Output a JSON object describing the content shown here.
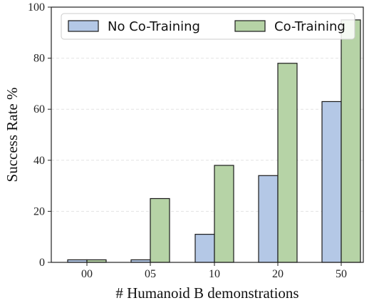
{
  "chart_data": {
    "type": "bar",
    "title": "",
    "xlabel": "# Humanoid B demonstrations",
    "ylabel": "Success Rate %",
    "categories": [
      "00",
      "05",
      "10",
      "20",
      "50"
    ],
    "series": [
      {
        "name": "No Co-Training",
        "values": [
          1,
          1,
          11,
          34,
          63
        ],
        "color": "#b4c8e6"
      },
      {
        "name": "Co-Training",
        "values": [
          1,
          25,
          38,
          78,
          95
        ],
        "color": "#b6d3a6"
      }
    ],
    "ylim": [
      0,
      100
    ],
    "yticks": [
      "0",
      "20",
      "40",
      "60",
      "80",
      "100"
    ],
    "grid": "horizontal-dashed",
    "legend_position": "top",
    "bar_edge_color": "#1a1a1a",
    "grid_color": "#e3e3e3"
  }
}
